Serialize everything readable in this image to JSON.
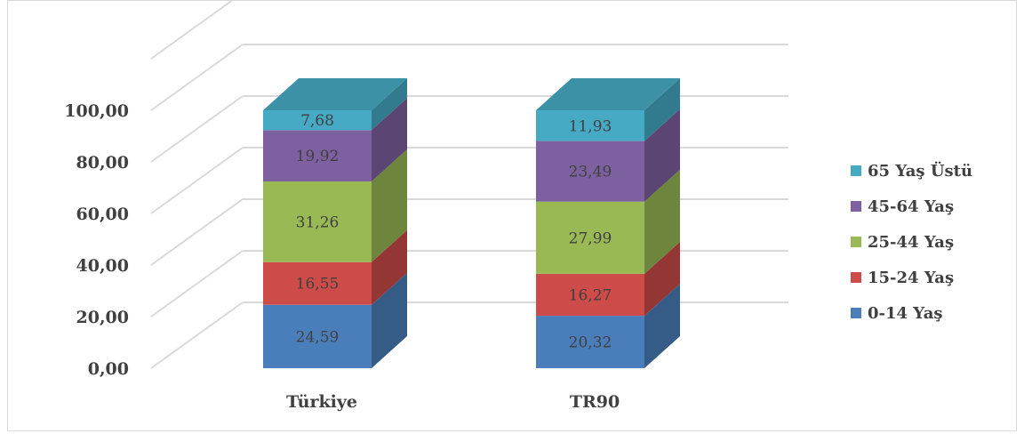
{
  "chart_data": {
    "type": "bar",
    "stacked": true,
    "three_d": true,
    "categories": [
      "Türkiye",
      "TR90"
    ],
    "series": [
      {
        "name": "0-14 Yaş",
        "values": [
          24.59,
          20.32
        ],
        "labels": [
          "24,59",
          "20,32"
        ],
        "color": "#4a7ebb"
      },
      {
        "name": "15-24 Yaş",
        "values": [
          16.55,
          16.27
        ],
        "labels": [
          "16,55",
          "16,27"
        ],
        "color": "#cd4b48"
      },
      {
        "name": "25-44 Yaş",
        "values": [
          31.26,
          27.99
        ],
        "labels": [
          "31,26",
          "27,99"
        ],
        "color": "#98b954"
      },
      {
        "name": "45-64 Yaş",
        "values": [
          19.92,
          23.49
        ],
        "labels": [
          "19,92",
          "23,49"
        ],
        "color": "#7d60a0"
      },
      {
        "name": "65 Yaş Üstü",
        "values": [
          7.68,
          11.93
        ],
        "labels": [
          "7,68",
          "11,93"
        ],
        "color": "#46aac5"
      }
    ],
    "yticks": [
      "0,00",
      "20,00",
      "40,00",
      "60,00",
      "80,00",
      "100,00"
    ],
    "ylim": [
      0,
      120
    ],
    "title": "",
    "xlabel": "",
    "ylabel": "",
    "grid": true,
    "legend_position": "right"
  }
}
